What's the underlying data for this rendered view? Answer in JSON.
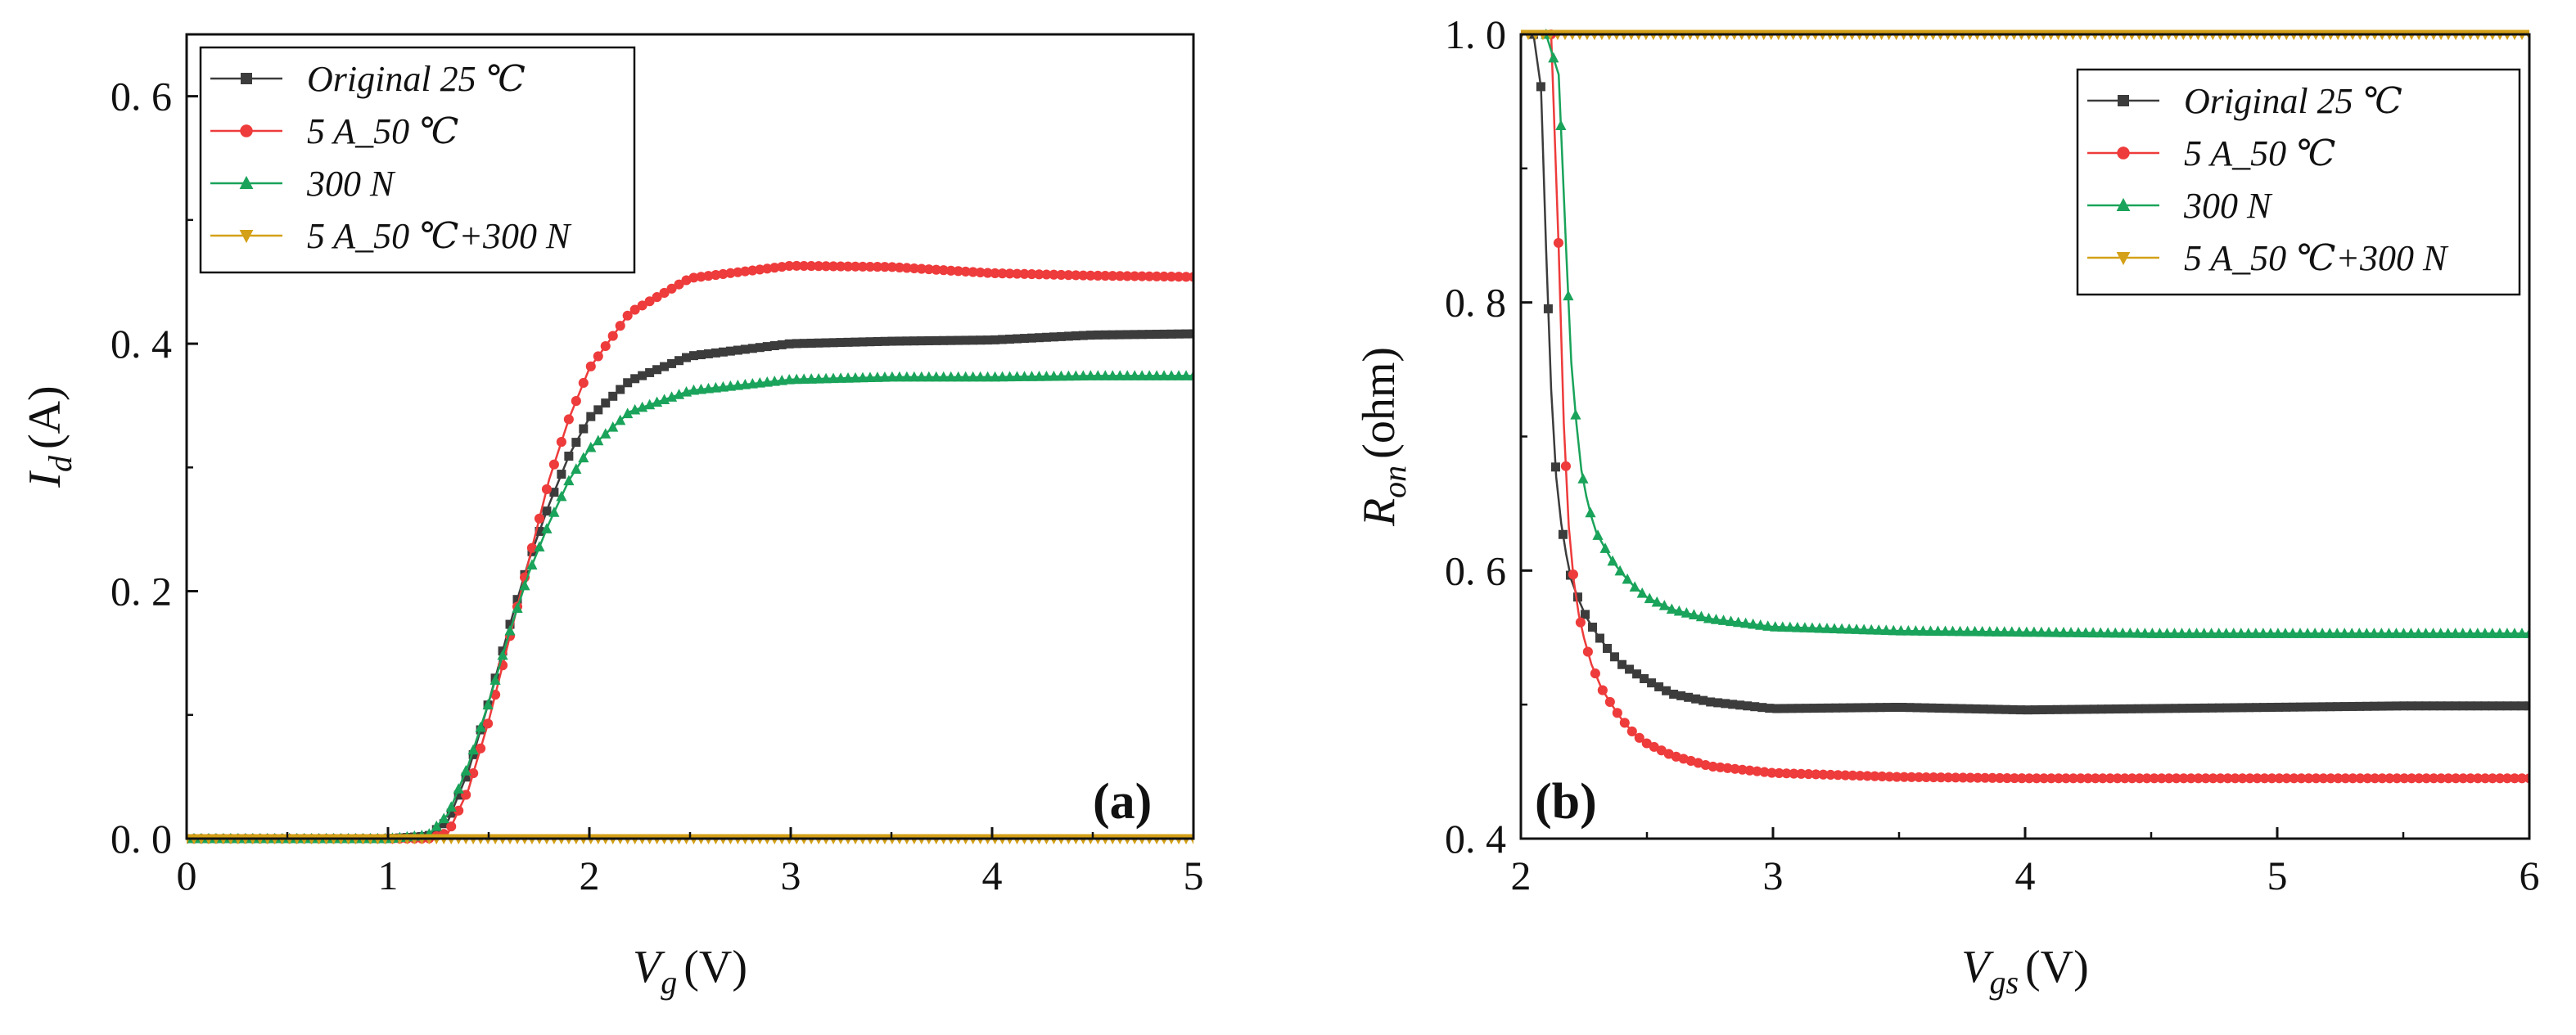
{
  "chart_data": [
    {
      "type": "scatter",
      "panel_label": "(a)",
      "xlabel": {
        "symbol": "V",
        "sub": "g",
        "unit": "(V)"
      },
      "ylabel": {
        "symbol": "I",
        "sub": "d",
        "unit": "(A)"
      },
      "xlim": [
        0,
        5
      ],
      "ylim": [
        0,
        0.65
      ],
      "xticks": [
        0,
        1,
        2,
        3,
        4,
        5
      ],
      "xtick_labels": [
        "0",
        "1",
        "2",
        "3",
        "4",
        "5"
      ],
      "yticks": [
        0.0,
        0.2,
        0.4,
        0.6
      ],
      "ytick_labels": [
        "0. 0",
        "0. 2",
        "0. 4",
        "0. 6"
      ],
      "legend": {
        "position": "top-left"
      },
      "series": [
        {
          "name": "Original 25 ℃",
          "color": "#3c3c3c",
          "marker": "square",
          "x": [
            0,
            0.5,
            1.0,
            1.2,
            1.3,
            1.4,
            1.5,
            1.6,
            1.7,
            1.8,
            1.9,
            2.0,
            2.2,
            2.5,
            3.0,
            3.5,
            4.0,
            4.5,
            5.0
          ],
          "y": [
            0.0,
            0.0,
            0.0,
            0.002,
            0.015,
            0.055,
            0.11,
            0.17,
            0.225,
            0.27,
            0.31,
            0.34,
            0.37,
            0.39,
            0.4,
            0.402,
            0.403,
            0.407,
            0.408
          ]
        },
        {
          "name": "5 A_50 ℃",
          "color": "#ee3b3b",
          "marker": "circle",
          "x": [
            0,
            0.5,
            1.0,
            1.2,
            1.3,
            1.4,
            1.5,
            1.6,
            1.7,
            1.8,
            1.9,
            2.0,
            2.2,
            2.5,
            3.0,
            3.5,
            4.0,
            4.5,
            5.0
          ],
          "y": [
            0.0,
            0.0,
            0.0,
            0.0,
            0.005,
            0.04,
            0.095,
            0.16,
            0.225,
            0.29,
            0.34,
            0.38,
            0.425,
            0.453,
            0.463,
            0.462,
            0.457,
            0.455,
            0.454
          ]
        },
        {
          "name": "300 N",
          "color": "#1aa35a",
          "marker": "triangle-up",
          "x": [
            0,
            0.5,
            1.0,
            1.2,
            1.3,
            1.4,
            1.5,
            1.6,
            1.7,
            1.8,
            1.9,
            2.0,
            2.2,
            2.5,
            3.0,
            3.5,
            4.0,
            4.5,
            5.0
          ],
          "y": [
            0.0,
            0.0,
            0.0,
            0.003,
            0.02,
            0.06,
            0.11,
            0.165,
            0.215,
            0.255,
            0.29,
            0.315,
            0.345,
            0.362,
            0.371,
            0.373,
            0.373,
            0.374,
            0.374
          ]
        },
        {
          "name": "5 A_50 ℃+300 N",
          "color": "#d4a017",
          "marker": "triangle-down",
          "x": [
            0,
            0.5,
            1.0,
            1.5,
            2.0,
            2.5,
            3.0,
            3.5,
            4.0,
            4.5,
            5.0
          ],
          "y": [
            0.0,
            0.0,
            0.0,
            0.0,
            0.0,
            0.0,
            0.0,
            0.0,
            0.0,
            0.0,
            0.0
          ]
        }
      ]
    },
    {
      "type": "scatter",
      "panel_label": "(b)",
      "xlabel": {
        "symbol": "V",
        "sub": "gs",
        "unit": "(V)"
      },
      "ylabel": {
        "symbol": "R",
        "sub": "on",
        "unit": "(ohm)"
      },
      "xlim": [
        2,
        6
      ],
      "ylim": [
        0.4,
        1.0
      ],
      "xticks": [
        2,
        3,
        4,
        5,
        6
      ],
      "xtick_labels": [
        "2",
        "3",
        "4",
        "5",
        "6"
      ],
      "yticks": [
        0.4,
        0.6,
        0.8,
        1.0
      ],
      "ytick_labels": [
        "0. 4",
        "0. 6",
        "0. 8",
        "1. 0"
      ],
      "legend": {
        "position": "top-right"
      },
      "series": [
        {
          "name": "Original 25 ℃",
          "color": "#3c3c3c",
          "marker": "square",
          "x": [
            2.05,
            2.08,
            2.1,
            2.12,
            2.14,
            2.16,
            2.18,
            2.2,
            2.23,
            2.26,
            2.3,
            2.35,
            2.4,
            2.5,
            2.6,
            2.75,
            3.0,
            3.5,
            4.0,
            4.5,
            5.0,
            5.5,
            6.0
          ],
          "y": [
            1.0,
            0.96,
            0.84,
            0.735,
            0.67,
            0.635,
            0.612,
            0.593,
            0.578,
            0.565,
            0.553,
            0.54,
            0.53,
            0.518,
            0.508,
            0.502,
            0.497,
            0.498,
            0.496,
            0.497,
            0.498,
            0.499,
            0.499
          ]
        },
        {
          "name": "5 A_50 ℃",
          "color": "#ee3b3b",
          "marker": "circle",
          "x": [
            2.12,
            2.15,
            2.17,
            2.19,
            2.21,
            2.23,
            2.25,
            2.28,
            2.32,
            2.36,
            2.4,
            2.45,
            2.5,
            2.6,
            2.75,
            3.0,
            3.5,
            4.0,
            4.5,
            5.0,
            5.5,
            6.0
          ],
          "y": [
            1.0,
            0.84,
            0.71,
            0.633,
            0.592,
            0.567,
            0.55,
            0.53,
            0.512,
            0.5,
            0.489,
            0.478,
            0.471,
            0.462,
            0.454,
            0.449,
            0.446,
            0.445,
            0.445,
            0.445,
            0.445,
            0.445
          ]
        },
        {
          "name": "300 N",
          "color": "#1aa35a",
          "marker": "triangle-up",
          "x": [
            2.1,
            2.15,
            2.18,
            2.2,
            2.22,
            2.24,
            2.26,
            2.28,
            2.3,
            2.33,
            2.36,
            2.4,
            2.45,
            2.5,
            2.6,
            2.75,
            3.0,
            3.5,
            4.0,
            4.5,
            5.0,
            5.5,
            6.0
          ],
          "y": [
            1.0,
            0.97,
            0.838,
            0.755,
            0.71,
            0.675,
            0.655,
            0.64,
            0.628,
            0.618,
            0.608,
            0.598,
            0.588,
            0.58,
            0.571,
            0.564,
            0.558,
            0.555,
            0.554,
            0.553,
            0.553,
            0.553,
            0.553
          ]
        },
        {
          "name": "5 A_50 ℃+300 N",
          "color": "#d4a017",
          "marker": "triangle-down",
          "x": [
            2.0,
            2.5,
            3.0,
            3.5,
            4.0,
            4.5,
            5.0,
            5.5,
            6.0
          ],
          "y": [
            1.0,
            1.0,
            1.0,
            1.0,
            1.0,
            1.0,
            1.0,
            1.0,
            1.0
          ]
        }
      ]
    }
  ]
}
